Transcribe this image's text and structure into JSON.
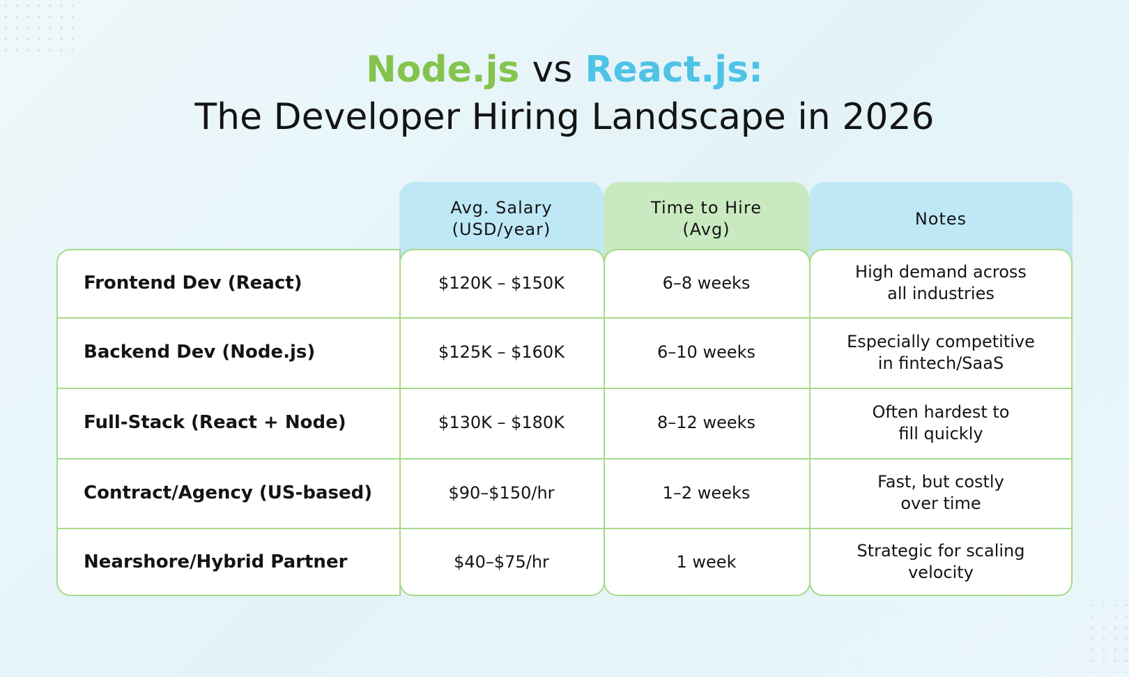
{
  "header": {
    "title_parts": [
      "Node.js",
      "vs",
      "React.js:"
    ],
    "subtitle": "The Developer Hiring Landscape in 2026"
  },
  "table": {
    "columns": [
      [
        "Avg. Salary",
        "(USD/year)"
      ],
      [
        "Time to Hire",
        "(Avg)"
      ],
      [
        "Notes"
      ]
    ],
    "rows": [
      [
        "Frontend Dev (React)",
        "$120K – $150K",
        "6–8 weeks",
        [
          "High demand across",
          "all industries"
        ]
      ],
      [
        "Backend Dev (Node.js)",
        "$125K – $160K",
        "6–10 weeks",
        [
          "Especially competitive",
          "in fintech/SaaS"
        ]
      ],
      [
        "Full-Stack (React + Node)",
        "$130K – $180K",
        "8–12 weeks",
        [
          "Often hardest to",
          "fill quickly"
        ]
      ],
      [
        "Contract/Agency (US-based)",
        "$90–$150/hr",
        "1–2 weeks",
        [
          "Fast, but costly",
          "over time"
        ]
      ],
      [
        "Nearshore/Hybrid Partner",
        "$40–$75/hr",
        "1 week",
        [
          "Strategic for scaling",
          "velocity"
        ]
      ]
    ]
  }
}
